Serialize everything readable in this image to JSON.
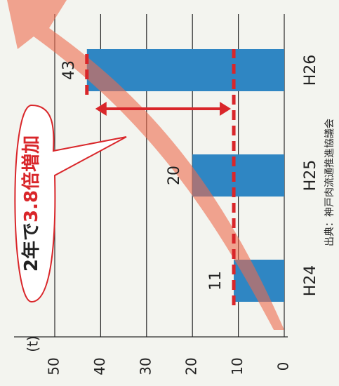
{
  "chart_data": {
    "type": "bar",
    "y_label": "(t)",
    "categories": [
      "H24",
      "H25",
      "H26"
    ],
    "values": [
      11,
      20,
      43
    ],
    "color": "#2f86c3",
    "ylim": [
      0,
      50
    ],
    "yticks": [
      0,
      10,
      20,
      30,
      40,
      50
    ],
    "grid": true,
    "annotation": [
      "2年で",
      "3.8倍増加"
    ],
    "source": "出典：神戸肉流通推進協議会"
  }
}
